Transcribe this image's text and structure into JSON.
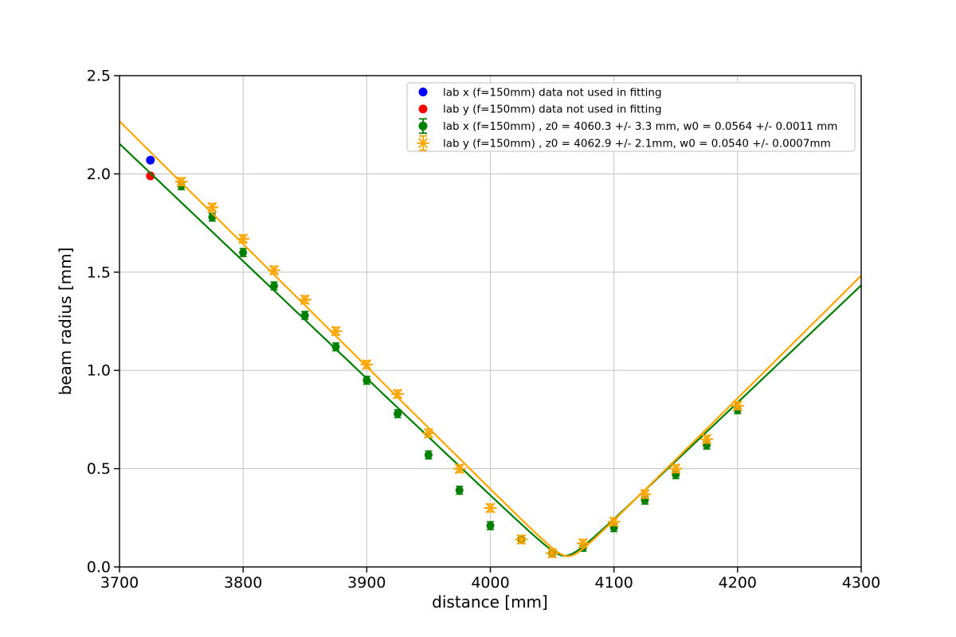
{
  "chart_data": {
    "type": "scatter",
    "title": "",
    "xlabel": "distance [mm]",
    "ylabel": "beam radius [mm]",
    "xlim": [
      3700,
      4300
    ],
    "ylim": [
      0.0,
      2.5
    ],
    "xticks": {
      "values": [
        3700,
        3800,
        3900,
        4000,
        4100,
        4200,
        4300
      ],
      "labels": [
        "3700",
        "3800",
        "3900",
        "4000",
        "4100",
        "4200",
        "4300"
      ]
    },
    "yticks": {
      "values": [
        0.0,
        0.5,
        1.0,
        1.5,
        2.0,
        2.5
      ],
      "labels": [
        "0.0",
        "0.5",
        "1.0",
        "1.5",
        "2.0",
        "2.5"
      ]
    },
    "grid": true,
    "grid_color": "#c9c9c9",
    "axis_color": "#000000",
    "legend_position": "upper center-right inside",
    "series": [
      {
        "id": "labx-unused",
        "label": "lab x (f=150mm) data not used in fitting",
        "color": "#0000ff",
        "marker": "circle",
        "errorbar": false,
        "x": [
          3725
        ],
        "y": [
          2.07
        ]
      },
      {
        "id": "laby-unused",
        "label": "lab y (f=150mm) data not used in fitting",
        "color": "#ff0000",
        "marker": "circle",
        "errorbar": false,
        "x": [
          3725
        ],
        "y": [
          1.99
        ]
      },
      {
        "id": "labx-fit",
        "label": "lab x (f=150mm) , z0 = 4060.3 +/- 3.3 mm, w0 = 0.0564 +/- 0.0011 mm",
        "color": "#008000",
        "marker": "circle",
        "errorbar": true,
        "yerr": 0.02,
        "x": [
          3750,
          3775,
          3800,
          3825,
          3850,
          3875,
          3900,
          3925,
          3950,
          3975,
          4000,
          4025,
          4050,
          4075,
          4100,
          4125,
          4150,
          4175,
          4200
        ],
        "y": [
          1.94,
          1.78,
          1.6,
          1.43,
          1.28,
          1.12,
          0.95,
          0.78,
          0.57,
          0.39,
          0.21,
          0.14,
          0.07,
          0.1,
          0.2,
          0.34,
          0.47,
          0.62,
          0.8
        ],
        "fit": {
          "z0": 4060.3,
          "w0": 0.0564,
          "slope": 0.005974
        }
      },
      {
        "id": "laby-fit",
        "label": "lab y (f=150mm) , z0 = 4062.9 +/- 2.1mm, w0 = 0.0540 +/- 0.0007mm",
        "color": "#ffa500",
        "marker": "asterisk",
        "errorbar": true,
        "yerr": 0.02,
        "x": [
          3750,
          3775,
          3800,
          3825,
          3850,
          3875,
          3900,
          3925,
          3950,
          3975,
          4000,
          4025,
          4050,
          4075,
          4100,
          4125,
          4150,
          4175,
          4200
        ],
        "y": [
          1.96,
          1.83,
          1.67,
          1.51,
          1.36,
          1.2,
          1.03,
          0.88,
          0.68,
          0.5,
          0.3,
          0.14,
          0.07,
          0.12,
          0.23,
          0.37,
          0.5,
          0.65,
          0.82
        ],
        "fit": {
          "z0": 4062.9,
          "w0": 0.054,
          "slope": 0.006248
        }
      }
    ]
  }
}
